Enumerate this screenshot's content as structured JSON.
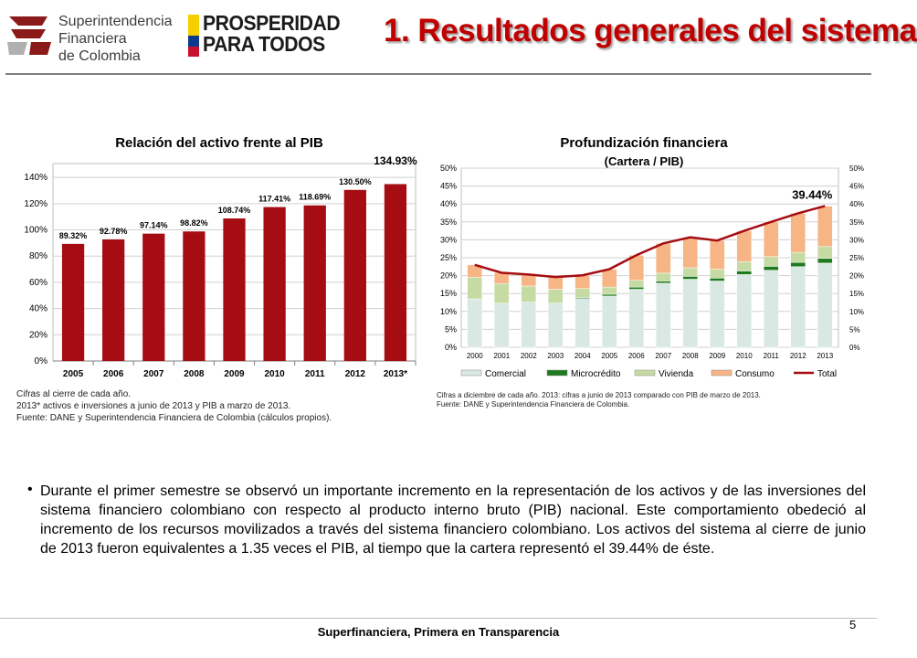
{
  "header": {
    "sfc_logo_lines": [
      "Superintendencia",
      "Financiera",
      "de Colombia"
    ],
    "prosperidad_lines": [
      "PROSPERIDAD",
      "PARA TODOS"
    ],
    "title": "1. Resultados generales del sistema"
  },
  "chart_data": [
    {
      "type": "bar",
      "title": "Relación del activo frente al PIB",
      "categories": [
        "2005",
        "2006",
        "2007",
        "2008",
        "2009",
        "2010",
        "2011",
        "2012",
        "2013*"
      ],
      "values": [
        89.32,
        92.78,
        97.14,
        98.82,
        108.74,
        117.41,
        118.69,
        130.5,
        134.93
      ],
      "value_labels": [
        "89.32%",
        "92.78%",
        "97.14%",
        "98.82%",
        "108.74%",
        "117.41%",
        "118.69%",
        "130.50%",
        "134.93%"
      ],
      "yticks": [
        "0%",
        "20%",
        "40%",
        "60%",
        "80%",
        "100%",
        "120%",
        "140%"
      ],
      "ylim": [
        0,
        145
      ],
      "color": "#a50d12",
      "grid": true,
      "notes": [
        "Cifras al cierre de cada año.",
        "2013* activos e inversiones a junio de 2013 y PIB a marzo de 2013.",
        "Fuente: DANE y Superintendencia Financiera de Colombia (cálculos propios)."
      ]
    },
    {
      "type": "bar",
      "stacked": true,
      "title": "Profundización financiera",
      "subtitle": "(Cartera / PIB)",
      "categories": [
        "2000",
        "2001",
        "2002",
        "2003",
        "2004",
        "2005",
        "2006",
        "2007",
        "2008",
        "2009",
        "2010",
        "2011",
        "2012",
        "2013"
      ],
      "series": [
        {
          "name": "Comercial",
          "color": "#d9e8e3",
          "values": [
            13.5,
            12.3,
            12.6,
            12.3,
            13.6,
            14.3,
            16.2,
            17.9,
            19.0,
            18.5,
            20.3,
            21.5,
            22.5,
            23.5
          ]
        },
        {
          "name": "Microcrédito",
          "color": "#1f7a1f",
          "values": [
            0.0,
            0.0,
            0.0,
            0.0,
            0.3,
            0.5,
            0.6,
            0.6,
            0.8,
            0.8,
            1.0,
            1.1,
            1.2,
            1.3
          ]
        },
        {
          "name": "Vivienda",
          "color": "#c6dba4",
          "values": [
            6.0,
            5.5,
            4.5,
            3.9,
            2.5,
            2.0,
            1.9,
            2.2,
            2.4,
            2.5,
            2.6,
            2.7,
            2.8,
            3.3
          ]
        },
        {
          "name": "Consumo",
          "color": "#f7b585",
          "values": [
            3.5,
            3.0,
            3.2,
            3.4,
            3.7,
            5.0,
            7.0,
            8.3,
            8.5,
            8.0,
            8.6,
            9.7,
            10.9,
            11.3
          ]
        }
      ],
      "line": {
        "name": "Total",
        "color": "#a50d12",
        "values": [
          23.0,
          20.8,
          20.3,
          19.6,
          20.1,
          21.8,
          25.7,
          29.0,
          30.7,
          29.8,
          32.5,
          35.0,
          37.4,
          39.44
        ]
      },
      "line_label": "39.44%",
      "yticks": [
        "0%",
        "5%",
        "10%",
        "15%",
        "20%",
        "25%",
        "30%",
        "35%",
        "40%",
        "45%",
        "50%"
      ],
      "ylim": [
        0,
        50
      ],
      "legend": "bottom",
      "notes": [
        "Cifras a diciembre de cada año. 2013: cifras a junio de 2013 comparado con PIB de marzo de 2013.",
        "Fuente: DANE y Superintendencia Financiera de Colombia."
      ]
    }
  ],
  "body": {
    "bullet": "Durante el primer semestre se observó un importante incremento en la representación de los activos y de las inversiones del sistema financiero colombiano con respecto al producto interno bruto (PIB) nacional. Este comportamiento obedeció al incremento de los recursos movilizados a través del sistema financiero colombiano. Los activos del sistema al cierre de junio de 2013 fueron equivalentes a 1.35 veces el PIB, al tiempo que la cartera representó el 39.44% de éste."
  },
  "footer": {
    "text": "Superfinanciera, Primera en Transparencia",
    "page": "5"
  }
}
